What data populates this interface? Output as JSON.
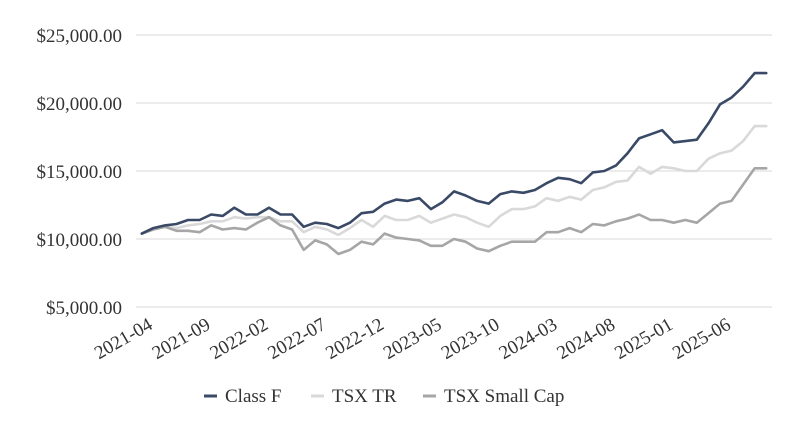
{
  "chart_data": {
    "type": "line",
    "title": "",
    "xlabel": "",
    "ylabel": "",
    "ylim": [
      5000,
      25000
    ],
    "y_ticks": [
      {
        "value": 5000,
        "label": "$5,000.00"
      },
      {
        "value": 10000,
        "label": "$10,000.00"
      },
      {
        "value": 15000,
        "label": "$15,000.00"
      },
      {
        "value": 20000,
        "label": "$20,000.00"
      },
      {
        "value": 25000,
        "label": "$25,000.00"
      }
    ],
    "x_ticks": [
      {
        "index": 0,
        "label": "2021-04"
      },
      {
        "index": 5,
        "label": "2021-09"
      },
      {
        "index": 10,
        "label": "2022-02"
      },
      {
        "index": 15,
        "label": "2022-07"
      },
      {
        "index": 20,
        "label": "2022-12"
      },
      {
        "index": 25,
        "label": "2023-05"
      },
      {
        "index": 30,
        "label": "2023-10"
      },
      {
        "index": 35,
        "label": "2024-03"
      },
      {
        "index": 40,
        "label": "2024-08"
      },
      {
        "index": 45,
        "label": "2025-01"
      },
      {
        "index": 50,
        "label": "2025-06"
      }
    ],
    "x": [
      "2021-04",
      "2021-05",
      "2021-06",
      "2021-07",
      "2021-08",
      "2021-09",
      "2021-10",
      "2021-11",
      "2021-12",
      "2022-01",
      "2022-02",
      "2022-03",
      "2022-04",
      "2022-05",
      "2022-06",
      "2022-07",
      "2022-08",
      "2022-09",
      "2022-10",
      "2022-11",
      "2022-12",
      "2023-01",
      "2023-02",
      "2023-03",
      "2023-04",
      "2023-05",
      "2023-06",
      "2023-07",
      "2023-08",
      "2023-09",
      "2023-10",
      "2023-11",
      "2023-12",
      "2024-01",
      "2024-02",
      "2024-03",
      "2024-04",
      "2024-05",
      "2024-06",
      "2024-07",
      "2024-08",
      "2024-09",
      "2024-10",
      "2024-11",
      "2024-12",
      "2025-01",
      "2025-02",
      "2025-03",
      "2025-04",
      "2025-05",
      "2025-06",
      "2025-07",
      "2025-08",
      "2025-09",
      "2025-10"
    ],
    "series": [
      {
        "name": "Class F",
        "color": "#3a4a66",
        "values": [
          10400,
          10800,
          11000,
          11100,
          11400,
          11400,
          11800,
          11700,
          12300,
          11800,
          11800,
          12300,
          11800,
          11800,
          10900,
          11200,
          11100,
          10800,
          11200,
          11900,
          12000,
          12600,
          12900,
          12800,
          13000,
          12200,
          12700,
          13500,
          13200,
          12800,
          12600,
          13300,
          13500,
          13400,
          13600,
          14100,
          14500,
          14400,
          14100,
          14900,
          15000,
          15400,
          16300,
          17400,
          17700,
          18000,
          17100,
          17200,
          17300,
          18500,
          19900,
          20400,
          21200,
          22200,
          22200
        ]
      },
      {
        "name": "TSX TR",
        "color": "#d9d9d9",
        "values": [
          10400,
          10700,
          10900,
          10800,
          11000,
          11100,
          11300,
          11300,
          11600,
          11500,
          11600,
          11600,
          11300,
          11300,
          10500,
          10900,
          10700,
          10300,
          10800,
          11400,
          10900,
          11700,
          11400,
          11400,
          11700,
          11200,
          11500,
          11800,
          11600,
          11200,
          10900,
          11700,
          12200,
          12200,
          12400,
          13000,
          12800,
          13100,
          12900,
          13600,
          13800,
          14200,
          14300,
          15300,
          14800,
          15300,
          15200,
          15000,
          15000,
          15900,
          16300,
          16500,
          17200,
          18300,
          18300
        ]
      },
      {
        "name": "TSX Small Cap",
        "color": "#a6a6a6",
        "values": [
          10400,
          10700,
          10900,
          10600,
          10600,
          10500,
          11000,
          10700,
          10800,
          10700,
          11200,
          11600,
          11000,
          10700,
          9200,
          9900,
          9600,
          8900,
          9200,
          9800,
          9600,
          10400,
          10100,
          10000,
          9900,
          9500,
          9500,
          10000,
          9800,
          9300,
          9100,
          9500,
          9800,
          9800,
          9800,
          10500,
          10500,
          10800,
          10500,
          11100,
          11000,
          11300,
          11500,
          11800,
          11400,
          11400,
          11200,
          11400,
          11200,
          11900,
          12600,
          12800,
          14000,
          15200,
          15200
        ]
      }
    ],
    "legend_position": "bottom",
    "grid": true
  }
}
